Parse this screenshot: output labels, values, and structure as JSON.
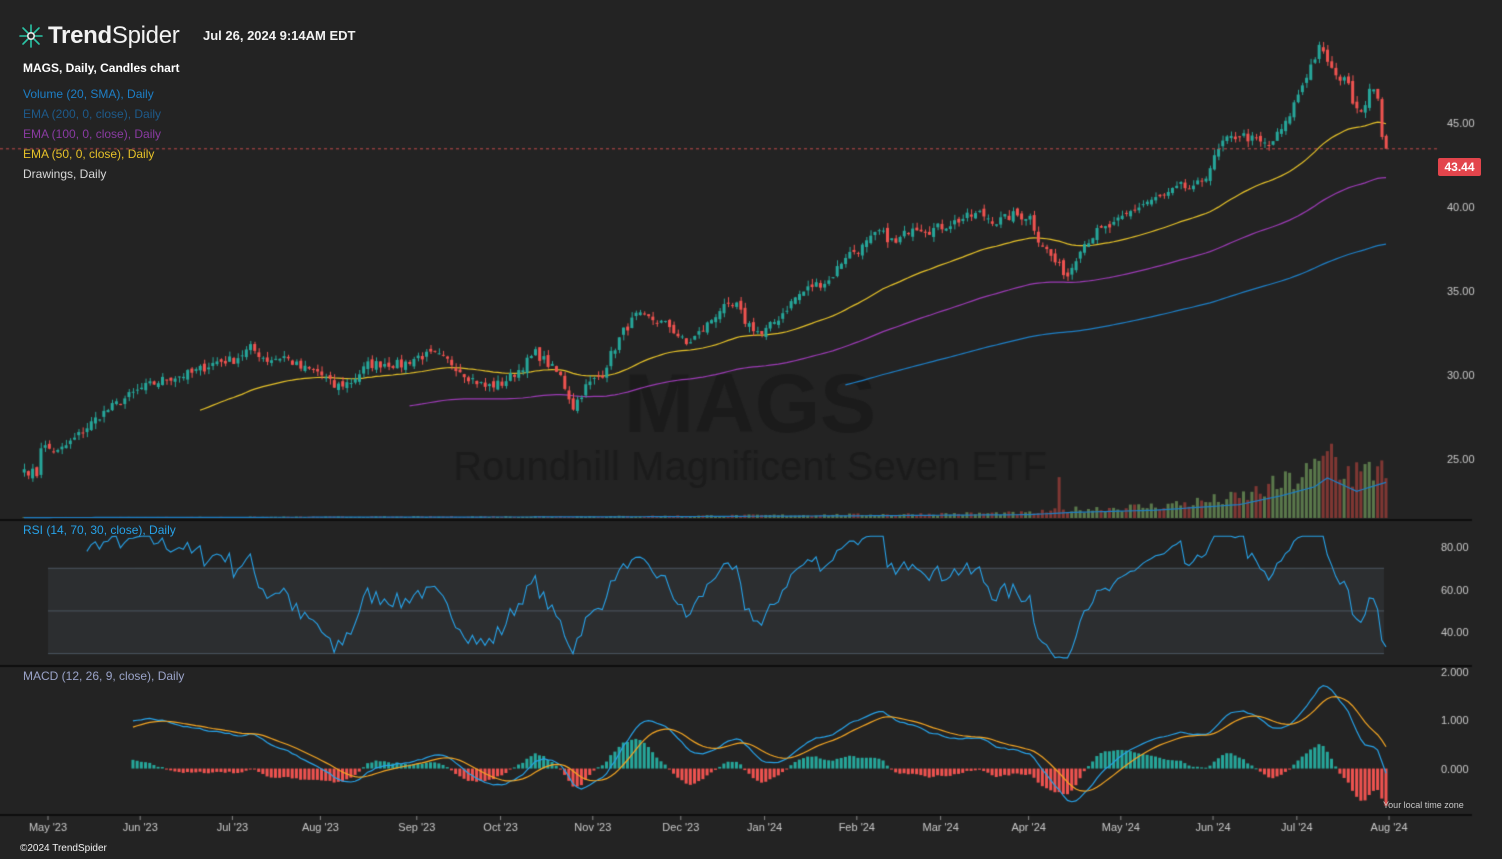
{
  "app": {
    "brand_bold": "Trend",
    "brand_light": "Spider",
    "timestamp": "Jul 26, 2024 9:14AM EDT",
    "copyright": "©2024 TrendSpider",
    "timezone_note": "Your local time zone"
  },
  "colors": {
    "background": "#232323",
    "up": "#26a69a",
    "down": "#ef5350",
    "ema50": "#e6c229",
    "ema100": "#9c3bb5",
    "ema200": "#1e7fc6",
    "rsi": "#27a2e8",
    "macd": "#27a2e8",
    "signal": "#f5a623",
    "price_tag": "#e3454c"
  },
  "legend": {
    "main": "MAGS, Daily, Candles chart",
    "volume": "Volume (20, SMA), Daily",
    "ema200": "EMA (200, 0, close), Daily",
    "ema100": "EMA (100, 0, close), Daily",
    "ema50": "EMA (50, 0, close), Daily",
    "drawings": "Drawings, Daily",
    "rsi": "RSI (14, 70, 30, close), Daily",
    "macd": "MACD (12, 26, 9, close), Daily"
  },
  "chart_data": {
    "type": "candlestick",
    "symbol": "MAGS",
    "watermark_symbol": "MAGS",
    "watermark_name": "Roundhill Magnificent Seven ETF",
    "last_price": "43.44",
    "price_axis": {
      "ticks": [
        "45.00",
        "40.00",
        "35.00",
        "30.00",
        "25.00"
      ],
      "range": [
        21.5,
        50.5
      ]
    },
    "rsi_axis": {
      "ticks": [
        "80.00",
        "60.00",
        "40.00"
      ],
      "range": [
        27,
        87
      ],
      "overbought": 70,
      "oversold": 30,
      "mid": 50
    },
    "macd_axis": {
      "ticks": [
        "2.000",
        "1.000",
        "0.000"
      ],
      "range": [
        -0.9,
        2.0
      ]
    },
    "x_labels": [
      "May '23",
      "Jun '23",
      "Jul '23",
      "Aug '23",
      "Sep '23",
      "Oct '23",
      "Nov '23",
      "Dec '23",
      "Jan '24",
      "Feb '24",
      "Mar '24",
      "Apr '24",
      "May '24",
      "Jun '24",
      "Jul '24",
      "Aug '24"
    ],
    "close_keypoints": [
      [
        0,
        24.4
      ],
      [
        3,
        24.1
      ],
      [
        4,
        25.8
      ],
      [
        8,
        25.4
      ],
      [
        12,
        26.2
      ],
      [
        18,
        27.6
      ],
      [
        24,
        28.6
      ],
      [
        28,
        29.2
      ],
      [
        34,
        29.8
      ],
      [
        40,
        30.1
      ],
      [
        46,
        30.8
      ],
      [
        50,
        30.9
      ],
      [
        54,
        31.6
      ],
      [
        58,
        30.9
      ],
      [
        62,
        31.1
      ],
      [
        66,
        30.4
      ],
      [
        70,
        30.2
      ],
      [
        74,
        29.3
      ],
      [
        78,
        29.6
      ],
      [
        82,
        30.6
      ],
      [
        86,
        30.7
      ],
      [
        90,
        30.6
      ],
      [
        94,
        31.1
      ],
      [
        98,
        31.2
      ],
      [
        102,
        30.7
      ],
      [
        106,
        29.9
      ],
      [
        110,
        29.3
      ],
      [
        114,
        29.5
      ],
      [
        118,
        30.3
      ],
      [
        122,
        31.3
      ],
      [
        124,
        30.9
      ],
      [
        128,
        29.9
      ],
      [
        131,
        28.1
      ],
      [
        134,
        29.3
      ],
      [
        138,
        30.1
      ],
      [
        140,
        31.2
      ],
      [
        143,
        32.6
      ],
      [
        146,
        33.5
      ],
      [
        150,
        33.3
      ],
      [
        154,
        32.9
      ],
      [
        158,
        31.8
      ],
      [
        162,
        32.7
      ],
      [
        166,
        33.9
      ],
      [
        170,
        34.1
      ],
      [
        172,
        33.2
      ],
      [
        176,
        32.4
      ],
      [
        180,
        33.4
      ],
      [
        184,
        34.6
      ],
      [
        188,
        35.3
      ],
      [
        192,
        35.6
      ],
      [
        196,
        37.1
      ],
      [
        200,
        37.6
      ],
      [
        204,
        38.5
      ],
      [
        208,
        37.8
      ],
      [
        212,
        38.9
      ],
      [
        216,
        38.6
      ],
      [
        220,
        38.9
      ],
      [
        224,
        39.3
      ],
      [
        228,
        39.6
      ],
      [
        232,
        39.1
      ],
      [
        236,
        39.5
      ],
      [
        240,
        39.4
      ],
      [
        242,
        38.1
      ],
      [
        246,
        36.7
      ],
      [
        249,
        35.9
      ],
      [
        252,
        37.6
      ],
      [
        256,
        38.5
      ],
      [
        260,
        38.9
      ],
      [
        264,
        39.7
      ],
      [
        268,
        40.3
      ],
      [
        272,
        40.6
      ],
      [
        276,
        41.2
      ],
      [
        279,
        41.0
      ],
      [
        282,
        41.9
      ],
      [
        286,
        43.8
      ],
      [
        290,
        44.3
      ],
      [
        294,
        43.9
      ],
      [
        297,
        43.6
      ],
      [
        301,
        44.9
      ],
      [
        304,
        46.7
      ],
      [
        307,
        48.4
      ],
      [
        309,
        49.4
      ],
      [
        311,
        48.7
      ],
      [
        313,
        47.6
      ],
      [
        315,
        47.8
      ],
      [
        317,
        46.4
      ],
      [
        319,
        45.7
      ],
      [
        321,
        46.9
      ],
      [
        323,
        46.6
      ],
      [
        324,
        44.3
      ],
      [
        325,
        43.44
      ]
    ],
    "volume_keypoints": [
      [
        0,
        0.4
      ],
      [
        140,
        1
      ],
      [
        200,
        2
      ],
      [
        240,
        3
      ],
      [
        250,
        5
      ],
      [
        270,
        7
      ],
      [
        290,
        12
      ],
      [
        300,
        20
      ],
      [
        308,
        28
      ],
      [
        311,
        36
      ],
      [
        318,
        24
      ],
      [
        325,
        32
      ]
    ],
    "volume_spikes": [
      [
        247,
        22
      ],
      [
        311,
        36
      ],
      [
        312,
        40
      ],
      [
        318,
        30
      ],
      [
        324,
        31
      ]
    ]
  }
}
